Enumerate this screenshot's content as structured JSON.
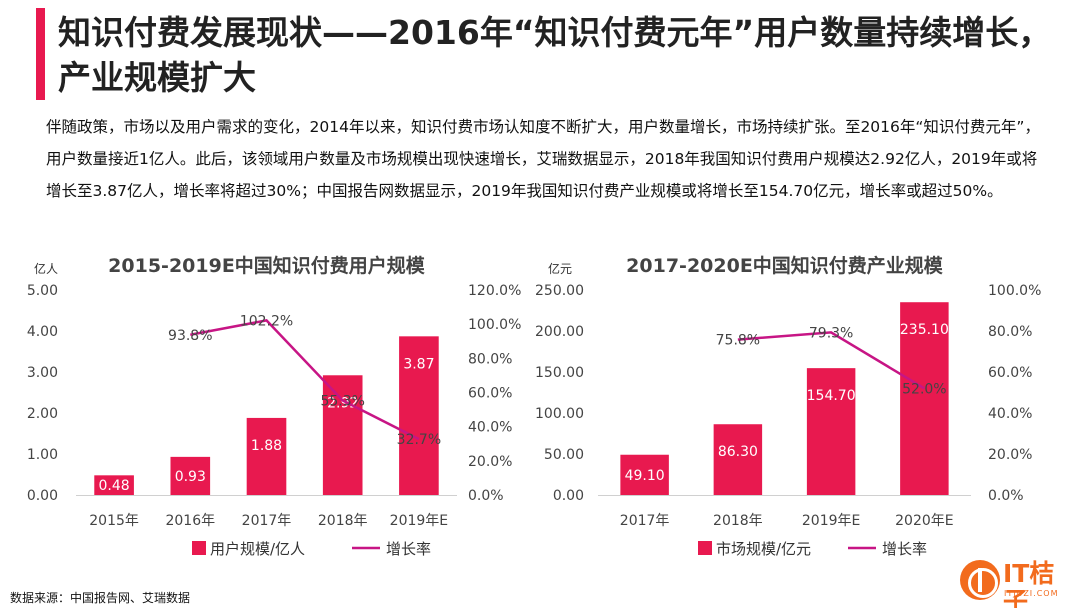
{
  "page": {
    "title": "知识付费发展现状——2016年“知识付费元年”用户数量持续增长，产业规模扩大",
    "intro": "伴随政策，市场以及用户需求的变化，2014年以来，知识付费市场认知度不断扩大，用户数量增长，市场持续扩张。至2016年“知识付费元年”，用户数量接近1亿人。此后，该领域用户数量及市场规模出现快速增长，艾瑞数据显示，2018年我国知识付费用户规模达2.92亿人，2019年或将增长至3.87亿人，增长率将超过30%；中国报告网数据显示，2019年我国知识付费产业规模或将增长至154.70亿元，增长率或超过50%。",
    "source": "数据来源：中国报告网、艾瑞数据",
    "logo_name": "IT桔子",
    "logo_url": "ITJUZI.COM"
  },
  "colors": {
    "title_accent": "#e8194f",
    "bar": "#e8194f",
    "line": "#c71585",
    "logo": "#f26b1d"
  },
  "chart_data": [
    {
      "type": "bar",
      "title": "2015-2019E中国知识付费用户规模",
      "unit_left": "亿人",
      "unit_right": "",
      "categories": [
        "2015年",
        "2016年",
        "2017年",
        "2018年",
        "2019年E"
      ],
      "y_ticks": [
        "0.00",
        "1.00",
        "2.00",
        "3.00",
        "4.00",
        "5.00"
      ],
      "y2_ticks": [
        "0.0%",
        "20.0%",
        "40.0%",
        "60.0%",
        "80.0%",
        "100.0%",
        "120.0%"
      ],
      "ylim": [
        0,
        5
      ],
      "y2lim": [
        0,
        120
      ],
      "series": [
        {
          "name": "用户规模/亿人",
          "kind": "bar",
          "values": [
            0.48,
            0.93,
            1.88,
            2.92,
            3.87
          ],
          "labels": [
            "0.48",
            "0.93",
            "1.88",
            "2.92",
            "3.87"
          ]
        },
        {
          "name": "增长率",
          "kind": "line",
          "values": [
            null,
            93.8,
            102.2,
            55.3,
            32.7
          ],
          "labels": [
            "",
            "93.8%",
            "102.2%",
            "55.3%",
            "32.7%"
          ]
        }
      ]
    },
    {
      "type": "bar",
      "title": "2017-2020E中国知识付费产业规模",
      "unit_left": "亿元",
      "unit_right": "",
      "categories": [
        "2017年",
        "2018年",
        "2019年E",
        "2020年E"
      ],
      "y_ticks": [
        "0.00",
        "50.00",
        "100.00",
        "150.00",
        "200.00",
        "250.00"
      ],
      "y2_ticks": [
        "0.0%",
        "20.0%",
        "40.0%",
        "60.0%",
        "80.0%",
        "100.0%"
      ],
      "ylim": [
        0,
        250
      ],
      "y2lim": [
        0,
        100
      ],
      "series": [
        {
          "name": "市场规模/亿元",
          "kind": "bar",
          "values": [
            49.1,
            86.3,
            154.7,
            235.1
          ],
          "labels": [
            "49.10",
            "86.30",
            "154.70",
            "235.10"
          ]
        },
        {
          "name": "增长率",
          "kind": "line",
          "values": [
            null,
            75.8,
            79.3,
            52.0
          ],
          "labels": [
            "",
            "75.8%",
            "79.3%",
            "52.0%"
          ]
        }
      ]
    }
  ]
}
